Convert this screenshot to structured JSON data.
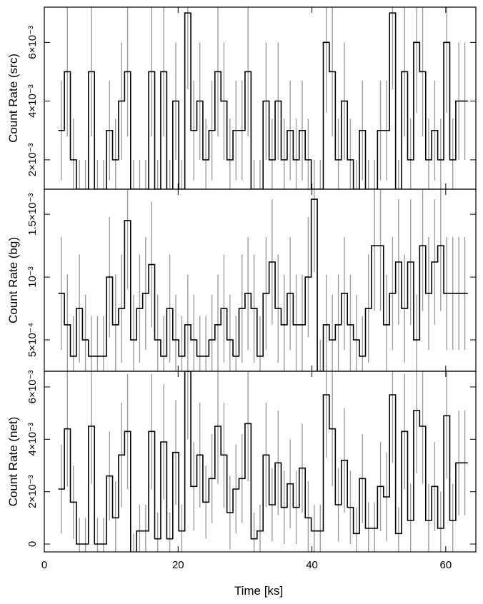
{
  "chart_data": [
    {
      "type": "line",
      "panel": "src",
      "ylabel": "Count Rate (src)",
      "x": [
        2.1,
        3.0,
        3.9,
        4.8,
        5.7,
        6.6,
        7.5,
        8.4,
        9.3,
        10.2,
        11.1,
        12.0,
        12.9,
        13.8,
        14.7,
        15.6,
        16.5,
        17.4,
        18.3,
        19.2,
        20.1,
        21.0,
        21.9,
        22.8,
        23.7,
        24.6,
        25.5,
        26.4,
        27.3,
        28.2,
        29.1,
        30.0,
        30.9,
        31.8,
        32.7,
        33.6,
        34.5,
        35.4,
        36.3,
        37.2,
        38.1,
        39.0,
        39.9,
        40.8,
        41.7,
        42.6,
        43.5,
        44.4,
        45.3,
        46.2,
        47.1,
        48.0,
        48.9,
        49.8,
        50.7,
        51.6,
        52.5,
        53.4,
        54.3,
        55.2,
        56.1,
        57.0,
        57.9,
        58.8,
        59.7,
        60.6,
        61.5,
        62.4
      ],
      "values": [
        0.003,
        0.005,
        0.002,
        0.001,
        0.001,
        0.005,
        0.001,
        0.001,
        0.003,
        0.002,
        0.004,
        0.005,
        0.001,
        0.001,
        0.001,
        0.005,
        0.001,
        0.005,
        0.001,
        0.004,
        0.001,
        0.007,
        0.003,
        0.004,
        0.002,
        0.003,
        0.005,
        0.004,
        0.002,
        0.003,
        0.003,
        0.005,
        0.001,
        0.001,
        0.004,
        0.002,
        0.004,
        0.002,
        0.003,
        0.002,
        0.003,
        0.002,
        0.001,
        0.001,
        0.006,
        0.005,
        0.002,
        0.004,
        0.002,
        0.001,
        0.003,
        0.001,
        0.001,
        0.003,
        0.003,
        0.007,
        0.001,
        0.005,
        0.002,
        0.006,
        0.005,
        0.002,
        0.003,
        0.002,
        0.006,
        0.002,
        0.004,
        0.004
      ],
      "errors": [
        0.0017,
        0.0022,
        0.0014,
        0.001,
        0.001,
        0.0022,
        0.001,
        0.001,
        0.0017,
        0.0014,
        0.002,
        0.0022,
        0.001,
        0.001,
        0.001,
        0.0022,
        0.001,
        0.0022,
        0.001,
        0.002,
        0.001,
        0.0026,
        0.0017,
        0.002,
        0.0014,
        0.0017,
        0.0022,
        0.002,
        0.0014,
        0.0017,
        0.0017,
        0.0022,
        0.001,
        0.001,
        0.002,
        0.0014,
        0.002,
        0.0014,
        0.0017,
        0.0014,
        0.0017,
        0.0014,
        0.001,
        0.001,
        0.0024,
        0.0022,
        0.0014,
        0.002,
        0.0014,
        0.001,
        0.0017,
        0.001,
        0.001,
        0.0017,
        0.0017,
        0.0026,
        0.001,
        0.0022,
        0.0014,
        0.0024,
        0.0022,
        0.0014,
        0.0017,
        0.0014,
        0.0024,
        0.0014,
        0.002,
        0.002
      ],
      "ylim": [
        0.001,
        0.0072
      ],
      "yticks": [
        0.002,
        0.004,
        0.006
      ],
      "ytick_labels": [
        "2×10⁻³",
        "4×10⁻³",
        "6×10⁻³"
      ]
    },
    {
      "type": "line",
      "panel": "bg",
      "ylabel": "Count Rate (bg)",
      "x": [
        2.1,
        3.0,
        3.9,
        4.8,
        5.7,
        6.6,
        7.5,
        8.4,
        9.3,
        10.2,
        11.1,
        12.0,
        12.9,
        13.8,
        14.7,
        15.6,
        16.5,
        17.4,
        18.3,
        19.2,
        20.1,
        21.0,
        21.9,
        22.8,
        23.7,
        24.6,
        25.5,
        26.4,
        27.3,
        28.2,
        29.1,
        30.0,
        30.9,
        31.8,
        32.7,
        33.6,
        34.5,
        35.4,
        36.3,
        37.2,
        38.1,
        39.0,
        39.9,
        40.8,
        41.7,
        42.6,
        43.5,
        44.4,
        45.3,
        46.2,
        47.1,
        48.0,
        48.9,
        49.8,
        50.7,
        51.6,
        52.5,
        53.4,
        54.3,
        55.2,
        56.1,
        57.0,
        57.9,
        58.8,
        59.7,
        60.6,
        61.5,
        62.4
      ],
      "values": [
        0.00087,
        0.00062,
        0.00037,
        0.00075,
        0.0005,
        0.00037,
        0.00037,
        0.00037,
        0.001,
        0.00062,
        0.00075,
        0.00145,
        0.0005,
        0.00075,
        0.00087,
        0.0011,
        0.0005,
        0.00037,
        0.00075,
        0.0005,
        0.00037,
        0.00062,
        0.0005,
        0.00037,
        0.00037,
        0.0005,
        0.00062,
        0.00075,
        0.0005,
        0.00037,
        0.00075,
        0.00087,
        0.00075,
        0.00037,
        0.00087,
        0.00112,
        0.00075,
        0.00062,
        0.00087,
        0.00062,
        0.00062,
        0.001,
        0.00162,
        0.00025,
        0.00062,
        0.0005,
        0.00062,
        0.00087,
        0.00062,
        0.0005,
        0.00037,
        0.00075,
        0.00125,
        0.00125,
        0.00062,
        0.00087,
        0.00112,
        0.00075,
        0.00112,
        0.0005,
        0.00125,
        0.00087,
        0.00112,
        0.00125,
        0.00087,
        0.00087,
        0.00087,
        0.00087
      ],
      "errors": [
        0.00045,
        0.0004,
        0.00032,
        0.00043,
        0.00036,
        0.00032,
        0.00032,
        0.00032,
        0.00048,
        0.0004,
        0.00043,
        0.00055,
        0.00036,
        0.00043,
        0.00045,
        0.0005,
        0.00036,
        0.00032,
        0.00043,
        0.00036,
        0.00032,
        0.0004,
        0.00036,
        0.00032,
        0.00032,
        0.00036,
        0.0004,
        0.00043,
        0.00036,
        0.00032,
        0.00043,
        0.00045,
        0.00043,
        0.00032,
        0.00045,
        0.0005,
        0.00043,
        0.0004,
        0.00045,
        0.0004,
        0.0004,
        0.00048,
        0.00058,
        0.00025,
        0.0004,
        0.00036,
        0.0004,
        0.00045,
        0.0004,
        0.00036,
        0.00032,
        0.00043,
        0.00052,
        0.00052,
        0.0004,
        0.00045,
        0.0005,
        0.00043,
        0.0005,
        0.00036,
        0.00052,
        0.00045,
        0.0005,
        0.00052,
        0.00045,
        0.00045,
        0.00045,
        0.00045
      ],
      "ylim": [
        0.00025,
        0.0017
      ],
      "yticks": [
        0.0005,
        0.001,
        0.0015
      ],
      "ytick_labels": [
        "5×10⁻⁴",
        "10⁻³",
        "1.5×10⁻³"
      ]
    },
    {
      "type": "line",
      "panel": "net",
      "ylabel": "Count Rate (net)",
      "xlabel": "Time [ks]",
      "x": [
        2.1,
        3.0,
        3.9,
        4.8,
        5.7,
        6.6,
        7.5,
        8.4,
        9.3,
        10.2,
        11.1,
        12.0,
        12.9,
        13.8,
        14.7,
        15.6,
        16.5,
        17.4,
        18.3,
        19.2,
        20.1,
        21.0,
        21.9,
        22.8,
        23.7,
        24.6,
        25.5,
        26.4,
        27.3,
        28.2,
        29.1,
        30.0,
        30.9,
        31.8,
        32.7,
        33.6,
        34.5,
        35.4,
        36.3,
        37.2,
        38.1,
        39.0,
        39.9,
        40.8,
        41.7,
        42.6,
        43.5,
        44.4,
        45.3,
        46.2,
        47.1,
        48.0,
        48.9,
        49.8,
        50.7,
        51.6,
        52.5,
        53.4,
        54.3,
        55.2,
        56.1,
        57.0,
        57.9,
        58.8,
        59.7,
        60.6,
        61.5,
        62.4
      ],
      "values": [
        0.0021,
        0.0044,
        0.0016,
        0.0,
        0.0,
        0.0045,
        0.0,
        0.0,
        0.0026,
        0.001,
        0.0034,
        0.0043,
        -0.0006,
        0.0005,
        0.0005,
        0.0043,
        0.0002,
        0.0039,
        0.0002,
        0.0035,
        0.0005,
        0.0066,
        0.0022,
        0.0034,
        0.0016,
        0.0025,
        0.0045,
        0.0034,
        0.0012,
        0.0021,
        0.0025,
        0.0046,
        0.0002,
        0.0005,
        0.0034,
        0.0015,
        0.0031,
        0.0014,
        0.0023,
        0.0014,
        0.0029,
        0.001,
        0.0005,
        0.0005,
        0.0057,
        0.0044,
        0.0015,
        0.0032,
        0.0014,
        0.0004,
        0.0025,
        0.0006,
        0.0006,
        0.0022,
        0.0018,
        0.0057,
        0.0004,
        0.0043,
        0.0009,
        0.0051,
        0.0045,
        0.0009,
        0.0022,
        0.0006,
        0.0049,
        0.0009,
        0.0031,
        0.0031
      ],
      "errors": [
        0.0017,
        0.0022,
        0.0014,
        0.001,
        0.001,
        0.0022,
        0.001,
        0.001,
        0.0017,
        0.0014,
        0.002,
        0.0022,
        0.001,
        0.001,
        0.001,
        0.0022,
        0.001,
        0.0022,
        0.001,
        0.002,
        0.001,
        0.0026,
        0.0017,
        0.002,
        0.0014,
        0.0017,
        0.0022,
        0.002,
        0.0014,
        0.0017,
        0.0017,
        0.0022,
        0.001,
        0.001,
        0.002,
        0.0014,
        0.002,
        0.0014,
        0.0017,
        0.0014,
        0.0017,
        0.0014,
        0.001,
        0.001,
        0.0024,
        0.0022,
        0.0014,
        0.002,
        0.0014,
        0.001,
        0.0017,
        0.001,
        0.001,
        0.0017,
        0.0017,
        0.0026,
        0.001,
        0.0022,
        0.0014,
        0.0024,
        0.0022,
        0.0014,
        0.0017,
        0.0014,
        0.0024,
        0.0014,
        0.002,
        0.002
      ],
      "ylim": [
        -0.0003,
        0.0066
      ],
      "yticks": [
        0,
        0.002,
        0.004,
        0.006
      ],
      "ytick_labels": [
        "0",
        "2×10⁻³",
        "4×10⁻³",
        "6×10⁻³"
      ],
      "xlim": [
        0,
        64.5
      ],
      "xticks": [
        0,
        20,
        40,
        60
      ],
      "xtick_labels": [
        "0",
        "20",
        "40",
        "60"
      ]
    }
  ],
  "colors": {
    "line": "#000000",
    "errorbar": "#9e9e9e",
    "frame": "#000000"
  }
}
